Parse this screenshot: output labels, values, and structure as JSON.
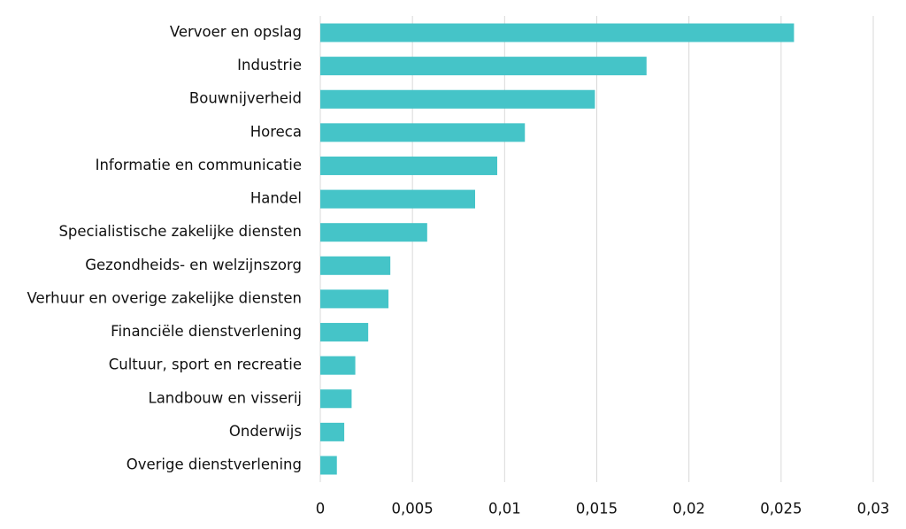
{
  "chart_data": {
    "type": "hbar",
    "categories": [
      "Vervoer en opslag",
      "Industrie",
      "Bouwnijverheid",
      "Horeca",
      "Informatie en communicatie",
      "Handel",
      "Specialistische zakelijke diensten",
      "Gezondheids- en welzijnszorg",
      "Verhuur en overige zakelijke diensten",
      "Financiële dienstverlening",
      "Cultuur, sport en recreatie",
      "Landbouw en visserij",
      "Onderwijs",
      "Overige dienstverlening"
    ],
    "values": [
      0.0257,
      0.0177,
      0.0149,
      0.0111,
      0.0096,
      0.0084,
      0.0058,
      0.0038,
      0.0037,
      0.0026,
      0.0019,
      0.0017,
      0.0013,
      0.0009
    ],
    "color": "#45c4c8",
    "xlim": [
      0,
      0.03
    ],
    "xticks": [
      0,
      {
        "value": 0.005,
        "label": "0,005"
      },
      {
        "value": 0.01,
        "label": "0,01"
      },
      {
        "value": 0.015,
        "label": "0,015"
      },
      {
        "value": 0.02,
        "label": "0,02"
      },
      {
        "value": 0.025,
        "label": "0,025"
      },
      {
        "value": 0.03,
        "label": "0,03"
      }
    ],
    "grid": true
  }
}
